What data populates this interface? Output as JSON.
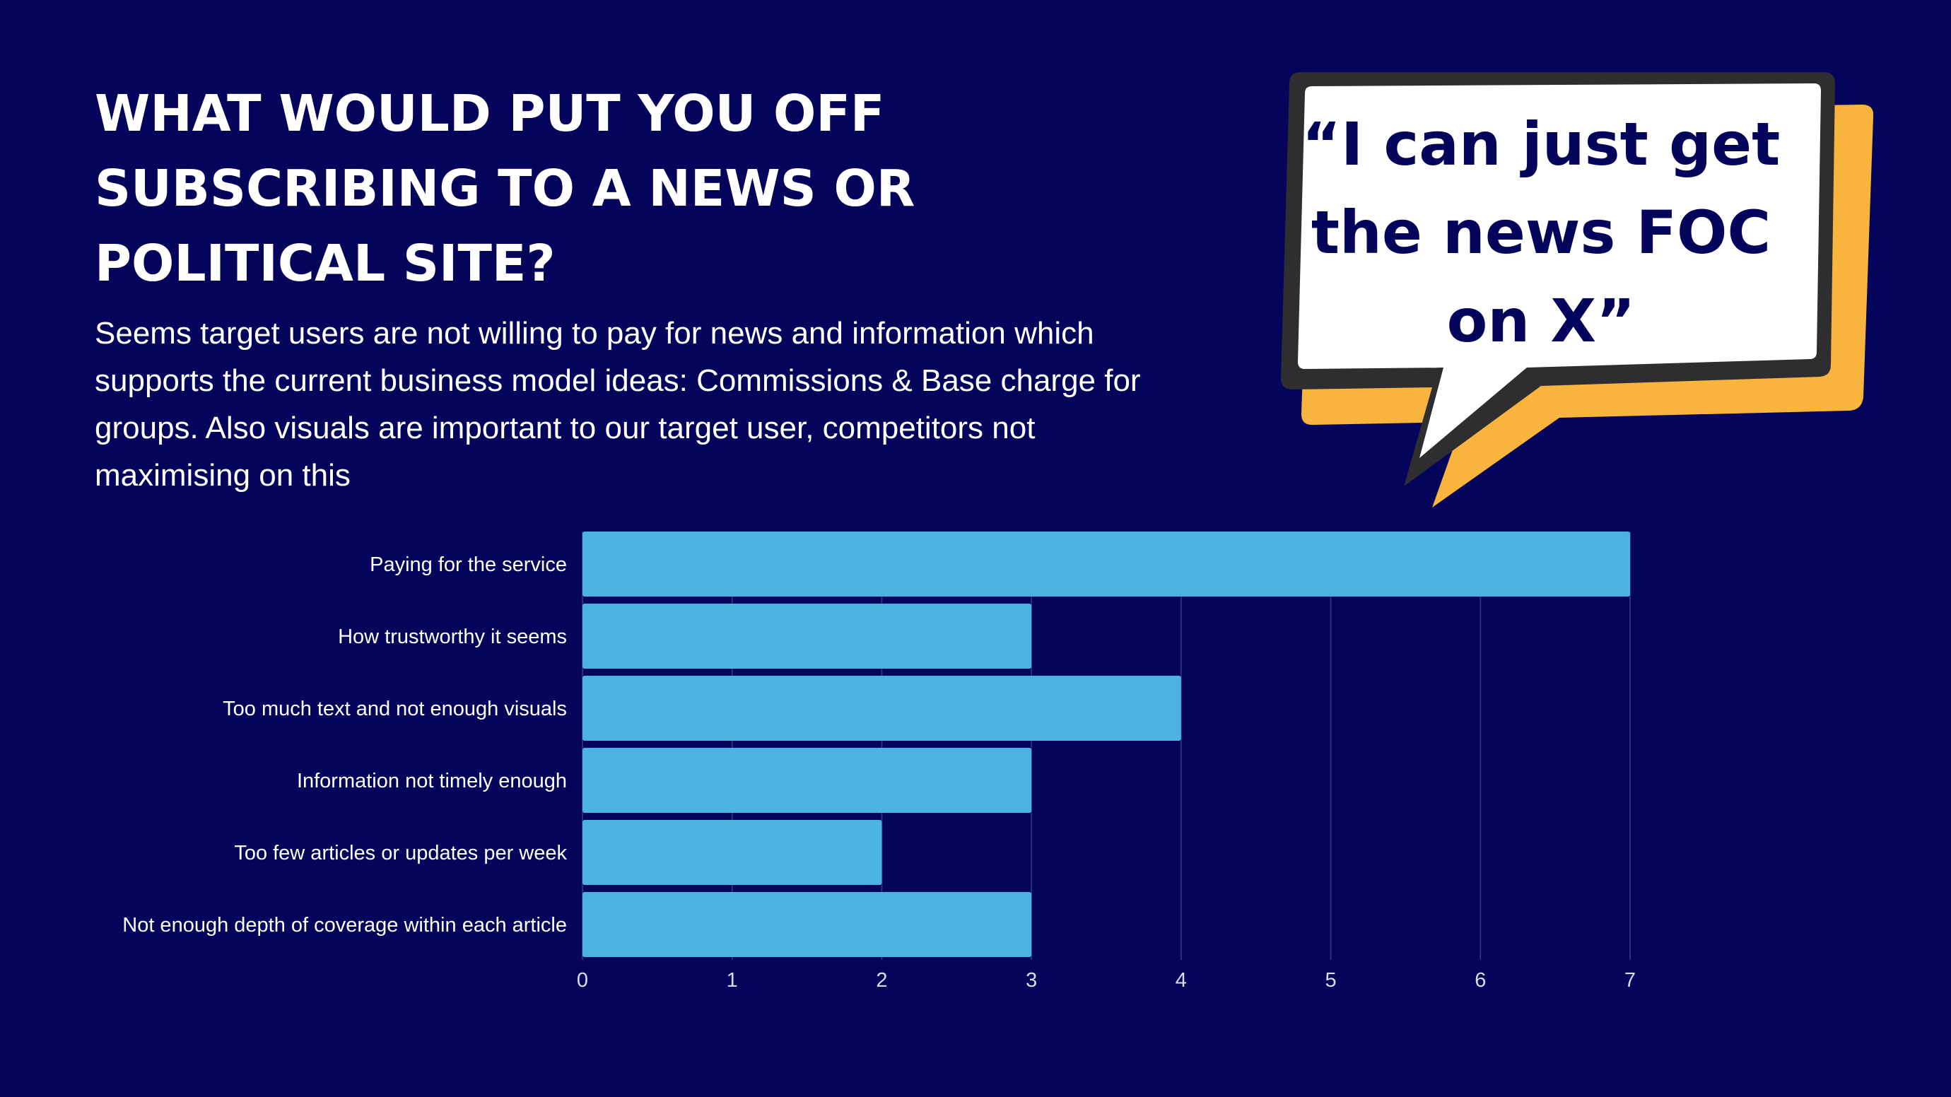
{
  "slide": {
    "title_lines": [
      "WHAT WOULD PUT YOU OFF",
      "SUBSCRIBING TO A NEWS OR",
      "POLITICAL SITE?"
    ],
    "subtitle_lines": [
      "Seems target users are not willing to pay for news and information which",
      "supports the current business model ideas: Commissions & Base charge for",
      "groups. Also visuals are important to our target user, competitors not",
      "maximising on this"
    ],
    "quote_lines": [
      "“I can just get",
      "the news FOC",
      "on X”"
    ]
  },
  "colors": {
    "background": "#03045a",
    "bar": "#4bb3e2",
    "bubble_fill": "#ffffff",
    "bubble_outline": "#2e2e30",
    "bubble_shadow": "#f9b43e",
    "quote_text": "#03045a"
  },
  "chart_data": {
    "type": "bar",
    "orientation": "horizontal",
    "categories": [
      "Paying for the service",
      "How trustworthy it seems",
      "Too much text and not enough visuals",
      "Information not timely enough",
      "Too few articles or updates per week",
      "Not enough depth of coverage within each article"
    ],
    "values": [
      7,
      3,
      4,
      3,
      2,
      3
    ],
    "xlim": [
      0,
      7
    ],
    "xticks": [
      "0",
      "1",
      "2",
      "3",
      "4",
      "5",
      "6",
      "7"
    ],
    "grid": true,
    "title": "",
    "xlabel": "",
    "ylabel": ""
  }
}
